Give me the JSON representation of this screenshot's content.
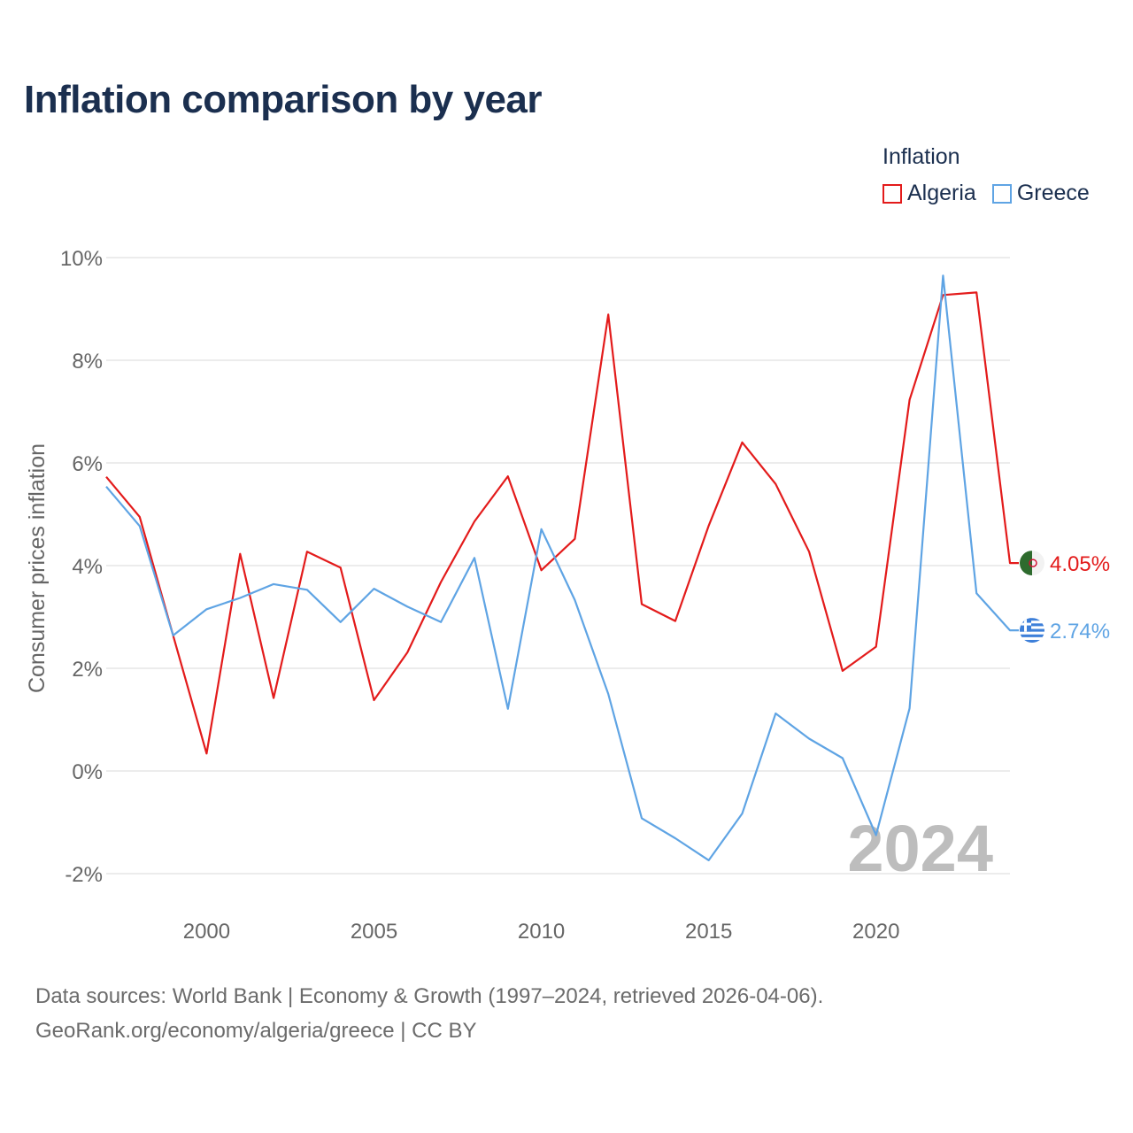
{
  "title": "Inflation comparison by year",
  "legend": {
    "title": "Inflation",
    "items": [
      {
        "label": "Algeria",
        "color": "#e31b1b"
      },
      {
        "label": "Greece",
        "color": "#5fa4e4"
      }
    ]
  },
  "watermark_year": "2024",
  "sources": {
    "line1": "Data sources: World Bank | Economy & Growth (1997–2024, retrieved 2026-04-06).",
    "line2": "GeoRank.org/economy/algeria/greece | CC BY"
  },
  "chart_data": {
    "type": "line",
    "title": "Inflation comparison by year",
    "xlabel": "",
    "ylabel": "Consumer prices inflation",
    "ylim": [
      -2,
      10
    ],
    "xlim": [
      1997,
      2024
    ],
    "yticks": [
      10,
      8,
      6,
      4,
      2,
      0,
      -2
    ],
    "ytick_labels": [
      "10%",
      "8%",
      "6%",
      "4%",
      "2%",
      "0%",
      "-2%"
    ],
    "xticks": [
      2000,
      2005,
      2010,
      2015,
      2020
    ],
    "xtick_labels": [
      "2000",
      "2005",
      "2010",
      "2015",
      "2020"
    ],
    "x": [
      1997,
      1998,
      1999,
      2000,
      2001,
      2002,
      2003,
      2004,
      2005,
      2006,
      2007,
      2008,
      2009,
      2010,
      2011,
      2012,
      2013,
      2014,
      2015,
      2016,
      2017,
      2018,
      2019,
      2020,
      2021,
      2022,
      2023,
      2024
    ],
    "series": [
      {
        "name": "Algeria",
        "color": "#e31b1b",
        "end_label": "4.05%",
        "values": [
          5.73,
          4.95,
          2.64,
          0.34,
          4.23,
          1.42,
          4.27,
          3.96,
          1.38,
          2.31,
          3.68,
          4.86,
          5.74,
          3.91,
          4.52,
          8.89,
          3.25,
          2.92,
          4.78,
          6.4,
          5.59,
          4.27,
          1.95,
          2.42,
          7.23,
          9.27,
          9.32,
          4.05
        ]
      },
      {
        "name": "Greece",
        "color": "#5fa4e4",
        "end_label": "2.74%",
        "values": [
          5.54,
          4.77,
          2.64,
          3.15,
          3.37,
          3.64,
          3.53,
          2.9,
          3.55,
          3.2,
          2.9,
          4.15,
          1.21,
          4.71,
          3.33,
          1.5,
          -0.92,
          -1.31,
          -1.74,
          -0.83,
          1.12,
          0.63,
          0.25,
          -1.25,
          1.22,
          9.65,
          3.46,
          2.74
        ]
      }
    ]
  }
}
